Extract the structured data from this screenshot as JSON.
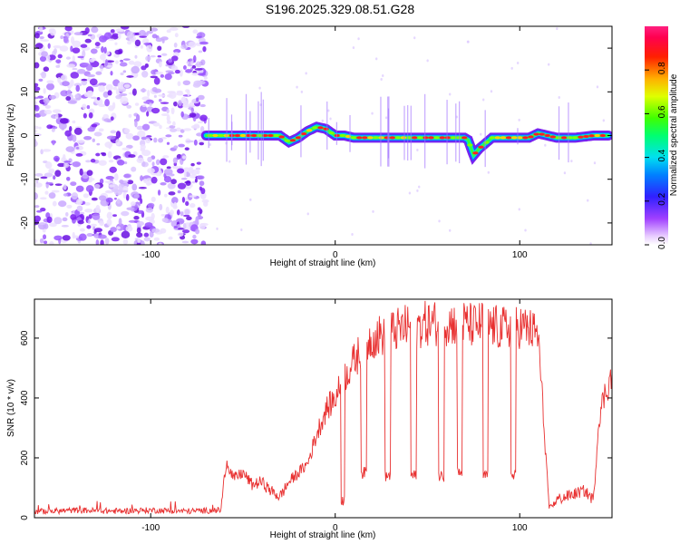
{
  "figure_title": "S196.2025.329.08.51.G28",
  "chart_data": [
    {
      "type": "heatmap",
      "title": "S196.2025.329.08.51.G28",
      "xlabel": "Height of straight line (km)",
      "ylabel": "Frequency (Hz)",
      "xlim": [
        -163,
        150
      ],
      "ylim": [
        -25,
        25
      ],
      "xticks": [
        -100,
        0,
        100
      ],
      "yticks": [
        -20,
        -10,
        0,
        10,
        20
      ],
      "xtick_labels": [
        "-100",
        "0",
        "100"
      ],
      "ytick_labels": [
        "-20",
        "-10",
        "0",
        "10",
        "20"
      ],
      "colorbar": {
        "label": "Normalized spectral amplitude",
        "range": [
          0,
          1
        ],
        "ticks": [
          0.0,
          0.2,
          0.4,
          0.6,
          0.8
        ],
        "tick_labels": [
          "0.0",
          "0.2",
          "0.4",
          "0.6",
          "0.8"
        ],
        "colormap": "rainbow (white-violet-blue-cyan-green-yellow-red-magenta)"
      },
      "noise_region_x": [
        -163,
        -70
      ],
      "signal_track": {
        "x": [
          -70,
          -60,
          -50,
          -40,
          -30,
          -25,
          -20,
          -15,
          -10,
          -5,
          0,
          5,
          10,
          20,
          40,
          60,
          70,
          72,
          75,
          78,
          85,
          95,
          105,
          110,
          120,
          130,
          140,
          148
        ],
        "freq_hz": [
          0,
          0,
          0,
          0,
          0,
          -1.5,
          -0.5,
          1,
          2,
          1.5,
          0,
          0,
          -0.5,
          -0.5,
          -0.5,
          -0.5,
          -0.5,
          -1,
          -4.5,
          -3,
          -0.5,
          -0.5,
          -0.5,
          0.5,
          -0.5,
          -0.5,
          0,
          0
        ]
      }
    },
    {
      "type": "line",
      "title": "",
      "xlabel": "Height of straight line (km)",
      "ylabel": "SNR (10 * v/v)",
      "xlim": [
        -163,
        150
      ],
      "ylim": [
        0,
        730
      ],
      "xticks": [
        -100,
        0,
        100
      ],
      "yticks": [
        0,
        200,
        400,
        600
      ],
      "xtick_labels": [
        "-100",
        "0",
        "100"
      ],
      "ytick_labels": [
        "0",
        "200",
        "400",
        "600"
      ],
      "color": "#e83030",
      "series": [
        {
          "name": "SNR",
          "x": [
            -163,
            -140,
            -120,
            -100,
            -80,
            -62,
            -59,
            -55,
            -50,
            -45,
            -40,
            -35,
            -30,
            -25,
            -20,
            -15,
            -10,
            -5,
            0,
            5,
            10,
            15,
            20,
            25,
            30,
            35,
            40,
            45,
            50,
            55,
            60,
            65,
            70,
            75,
            80,
            85,
            90,
            95,
            100,
            105,
            110,
            113,
            116,
            120,
            125,
            130,
            135,
            140,
            143,
            146,
            150
          ],
          "values": [
            20,
            25,
            22,
            25,
            22,
            25,
            190,
            130,
            150,
            110,
            120,
            90,
            70,
            120,
            150,
            180,
            280,
            360,
            400,
            470,
            520,
            570,
            600,
            610,
            620,
            630,
            640,
            640,
            650,
            650,
            650,
            650,
            650,
            640,
            650,
            640,
            630,
            640,
            640,
            630,
            610,
            320,
            30,
            60,
            70,
            80,
            90,
            60,
            340,
            410,
            480
          ]
        }
      ],
      "dropouts": [
        {
          "x": [
            3,
            5
          ],
          "value": 60
        },
        {
          "x": [
            14,
            17
          ],
          "value": 150
        },
        {
          "x": [
            27,
            30
          ],
          "value": 140
        },
        {
          "x": [
            41,
            44
          ],
          "value": 140
        },
        {
          "x": [
            56,
            59
          ],
          "value": 140
        },
        {
          "x": [
            66,
            69
          ],
          "value": 150
        },
        {
          "x": [
            80,
            83
          ],
          "value": 140
        },
        {
          "x": [
            95,
            98
          ],
          "value": 140
        }
      ]
    }
  ]
}
